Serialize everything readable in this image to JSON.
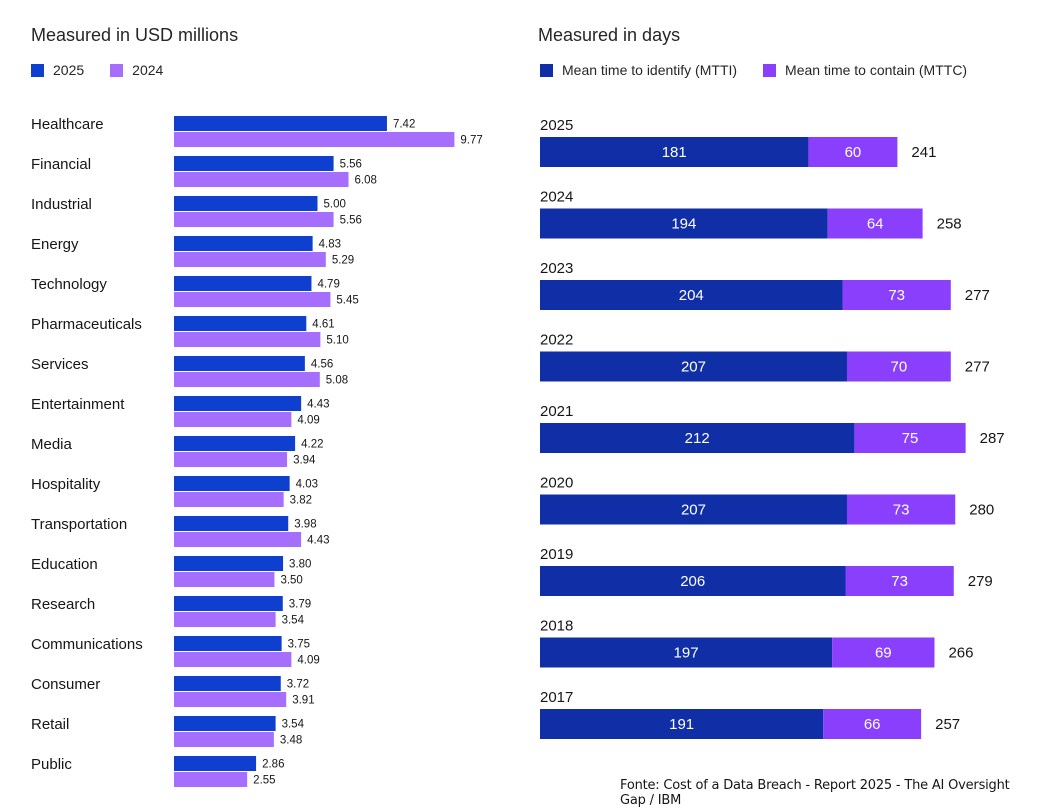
{
  "chart_data": [
    {
      "type": "bar",
      "orientation": "horizontal",
      "title": "Measured in USD millions",
      "categories": [
        "Healthcare",
        "Financial",
        "Industrial",
        "Energy",
        "Technology",
        "Pharmaceuticals",
        "Services",
        "Entertainment",
        "Media",
        "Hospitality",
        "Transportation",
        "Education",
        "Research",
        "Communications",
        "Consumer",
        "Retail",
        "Public"
      ],
      "series": [
        {
          "name": "2025",
          "color": "#0f3fce",
          "values": [
            7.42,
            5.56,
            5.0,
            4.83,
            4.79,
            4.61,
            4.56,
            4.43,
            4.22,
            4.03,
            3.98,
            3.8,
            3.79,
            3.75,
            3.72,
            3.54,
            2.86
          ]
        },
        {
          "name": "2024",
          "color": "#a56eff",
          "values": [
            9.77,
            6.08,
            5.56,
            5.29,
            5.45,
            5.1,
            5.08,
            4.09,
            3.94,
            3.82,
            4.43,
            3.5,
            3.54,
            4.09,
            3.91,
            3.48,
            2.55
          ]
        }
      ],
      "legend_position": "top-left",
      "grid": false
    },
    {
      "type": "bar",
      "orientation": "horizontal",
      "stacked": true,
      "title": "Measured in days",
      "categories": [
        "2025",
        "2024",
        "2023",
        "2022",
        "2021",
        "2020",
        "2019",
        "2018",
        "2017"
      ],
      "series": [
        {
          "name": "Mean time to identify (MTTI)",
          "color": "#102fa6",
          "values": [
            181,
            194,
            204,
            207,
            212,
            207,
            206,
            197,
            191
          ]
        },
        {
          "name": "Mean time to contain (MTTC)",
          "color": "#8a3ffc",
          "values": [
            60,
            64,
            73,
            70,
            75,
            73,
            73,
            69,
            66
          ]
        }
      ],
      "totals": [
        241,
        258,
        277,
        277,
        287,
        280,
        279,
        266,
        257
      ],
      "legend_position": "top-left",
      "grid": false
    }
  ],
  "source_note": "Fonte: Cost of a Data Breach - Report 2025 - The AI Oversight Gap / IBM"
}
